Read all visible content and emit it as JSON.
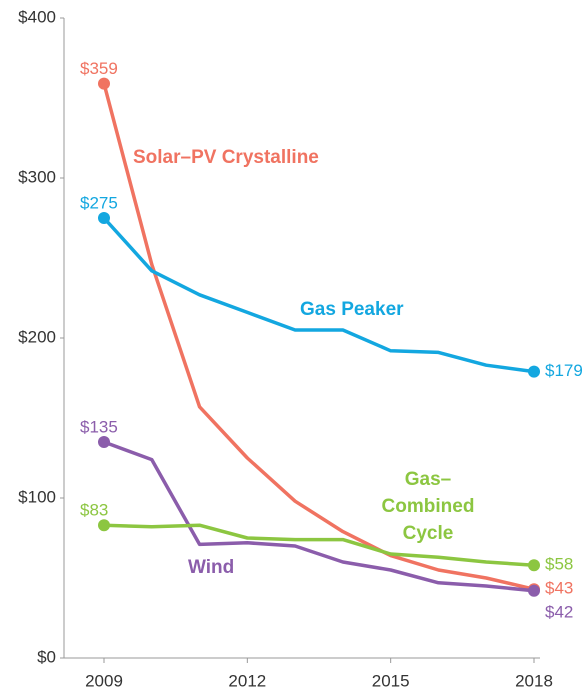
{
  "chart_data": {
    "type": "line",
    "x": [
      2009,
      2010,
      2011,
      2012,
      2013,
      2014,
      2015,
      2016,
      2017,
      2018
    ],
    "xlim": [
      2009,
      2018
    ],
    "xticks": [
      2009,
      2012,
      2015,
      2018
    ],
    "ylim": [
      0,
      400
    ],
    "yticks": [
      {
        "value": 0,
        "label": "$0"
      },
      {
        "value": 100,
        "label": "$100"
      },
      {
        "value": 200,
        "label": "$200"
      },
      {
        "value": 300,
        "label": "$300"
      },
      {
        "value": 400,
        "label": "$400"
      }
    ],
    "series": [
      {
        "name": "Solar–PV Crystalline",
        "color": "#f07361",
        "values": [
          359,
          246,
          157,
          125,
          98,
          79,
          64,
          55,
          50,
          43
        ],
        "value_labels": [
          "$359",
          null,
          null,
          null,
          null,
          null,
          null,
          null,
          null,
          "$43"
        ]
      },
      {
        "name": "Gas Peaker",
        "color": "#13a7e0",
        "values": [
          275,
          242,
          227,
          216,
          205,
          205,
          192,
          191,
          183,
          179
        ],
        "value_labels": [
          "$275",
          null,
          null,
          null,
          null,
          null,
          null,
          null,
          null,
          "$179"
        ]
      },
      {
        "name": "Wind",
        "color": "#8b5dab",
        "values": [
          135,
          124,
          71,
          72,
          70,
          60,
          55,
          47,
          45,
          42
        ],
        "value_labels": [
          "$135",
          null,
          null,
          null,
          null,
          null,
          null,
          null,
          null,
          "$42"
        ]
      },
      {
        "name": "Gas– Combined Cycle",
        "color": "#8cc641",
        "values": [
          83,
          82,
          83,
          75,
          74,
          74,
          65,
          63,
          60,
          58
        ],
        "value_labels": [
          "$83",
          null,
          null,
          null,
          null,
          null,
          null,
          null,
          null,
          "$58"
        ]
      }
    ]
  }
}
